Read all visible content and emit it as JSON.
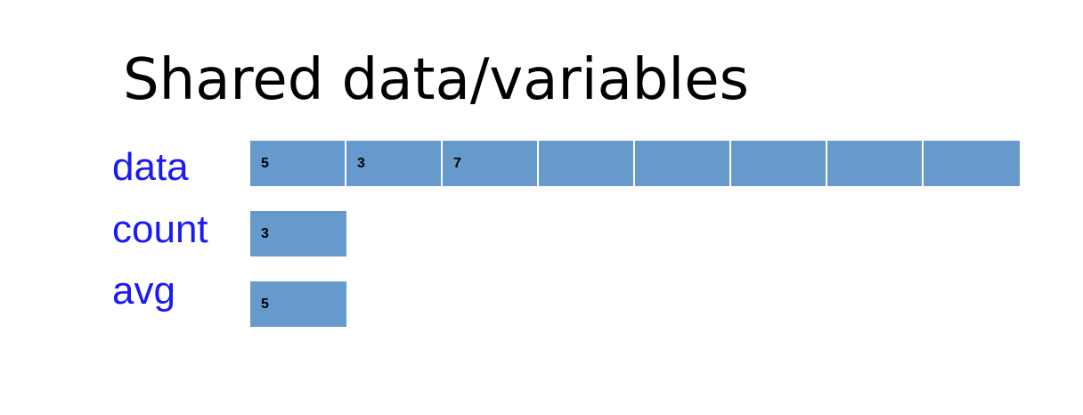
{
  "title": "Shared data/variables",
  "colors": {
    "label": "#1a1af5",
    "cell_fill": "#6699cc",
    "cell_divider": "#ffffff"
  },
  "variables": [
    {
      "name": "data",
      "cells": [
        "5",
        "3",
        "7",
        "",
        "",
        "",
        "",
        ""
      ]
    },
    {
      "name": "count",
      "cells": [
        "3"
      ]
    },
    {
      "name": "avg",
      "cells": [
        "5"
      ]
    }
  ]
}
